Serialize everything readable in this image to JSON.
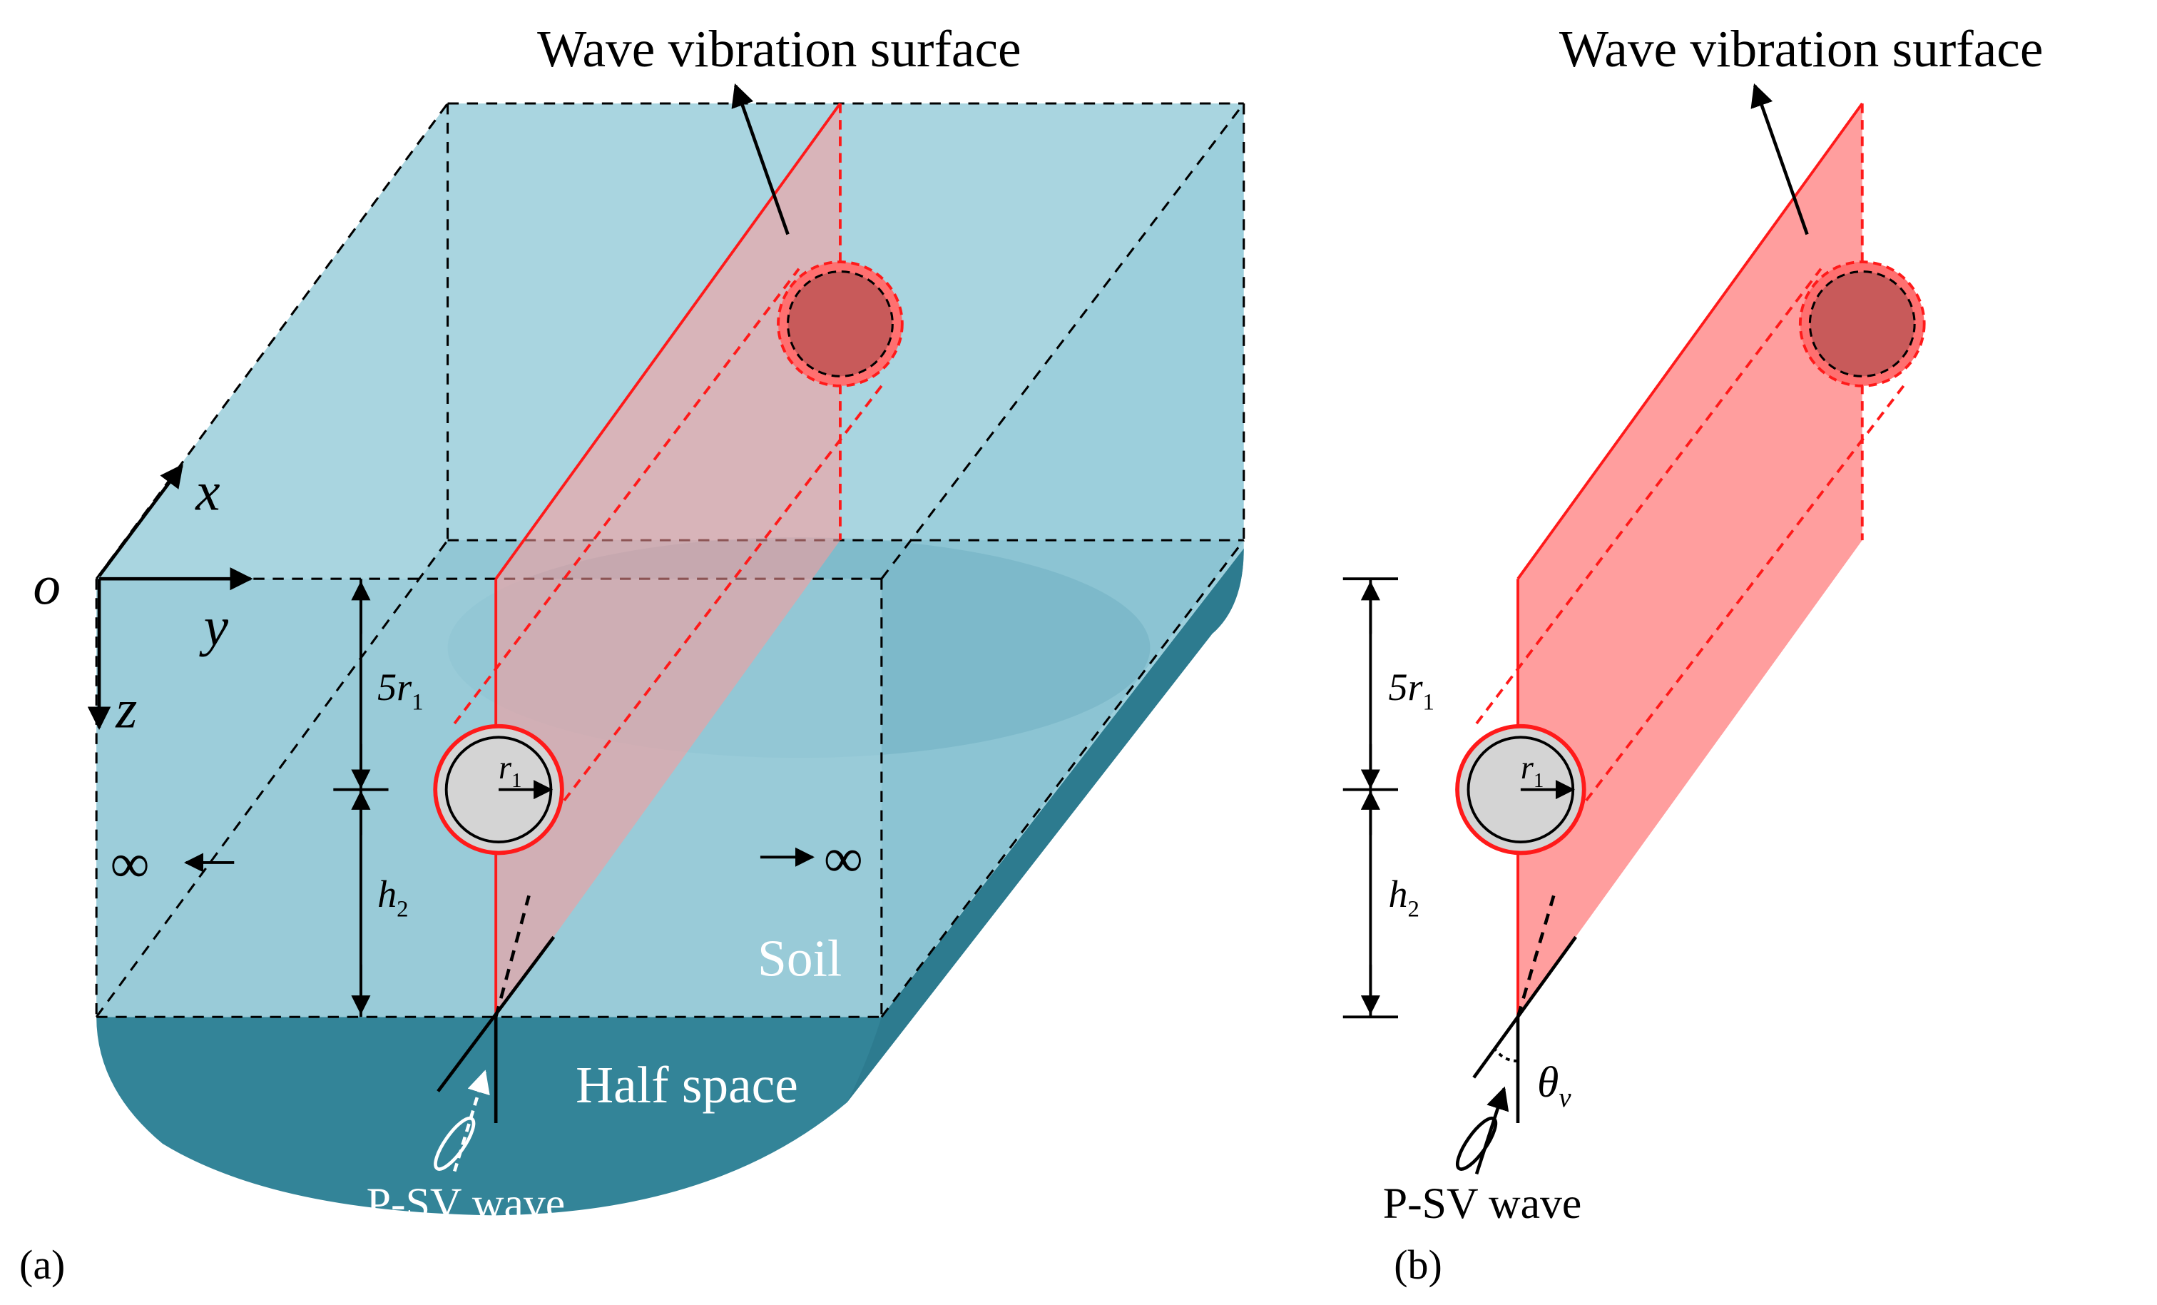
{
  "figure": {
    "panel_a": {
      "label": "(a)",
      "title": "Wave vibration surface",
      "axis_origin": "o",
      "axis_x": "x",
      "axis_y": "y",
      "axis_z": "z",
      "infinity_left": "∞",
      "infinity_right": "∞",
      "dim_top": {
        "base": "5r",
        "sub": "1"
      },
      "dim_bottom": {
        "base": "h",
        "sub": "2"
      },
      "radius": {
        "base": "r",
        "sub": "1"
      },
      "soil_label": "Soil",
      "half_space_label": "Half space",
      "wave_label": "P-SV wave"
    },
    "panel_b": {
      "label": "(b)",
      "title": "Wave vibration surface",
      "dim_top": {
        "base": "5r",
        "sub": "1"
      },
      "dim_bottom": {
        "base": "h",
        "sub": "2"
      },
      "radius": {
        "base": "r",
        "sub": "1"
      },
      "angle": {
        "base": "θ",
        "sub": "v"
      },
      "wave_label": "P-SV wave"
    }
  },
  "colors": {
    "soil_light": "#a9d5e0",
    "soil_mid": "#7fbccc",
    "half_space": "#338498",
    "half_space_side": "#2d7b8f",
    "wave_surface": "#ff9999",
    "wave_edge": "#ff1a1a",
    "tunnel_fill": "#d4d4d4"
  }
}
